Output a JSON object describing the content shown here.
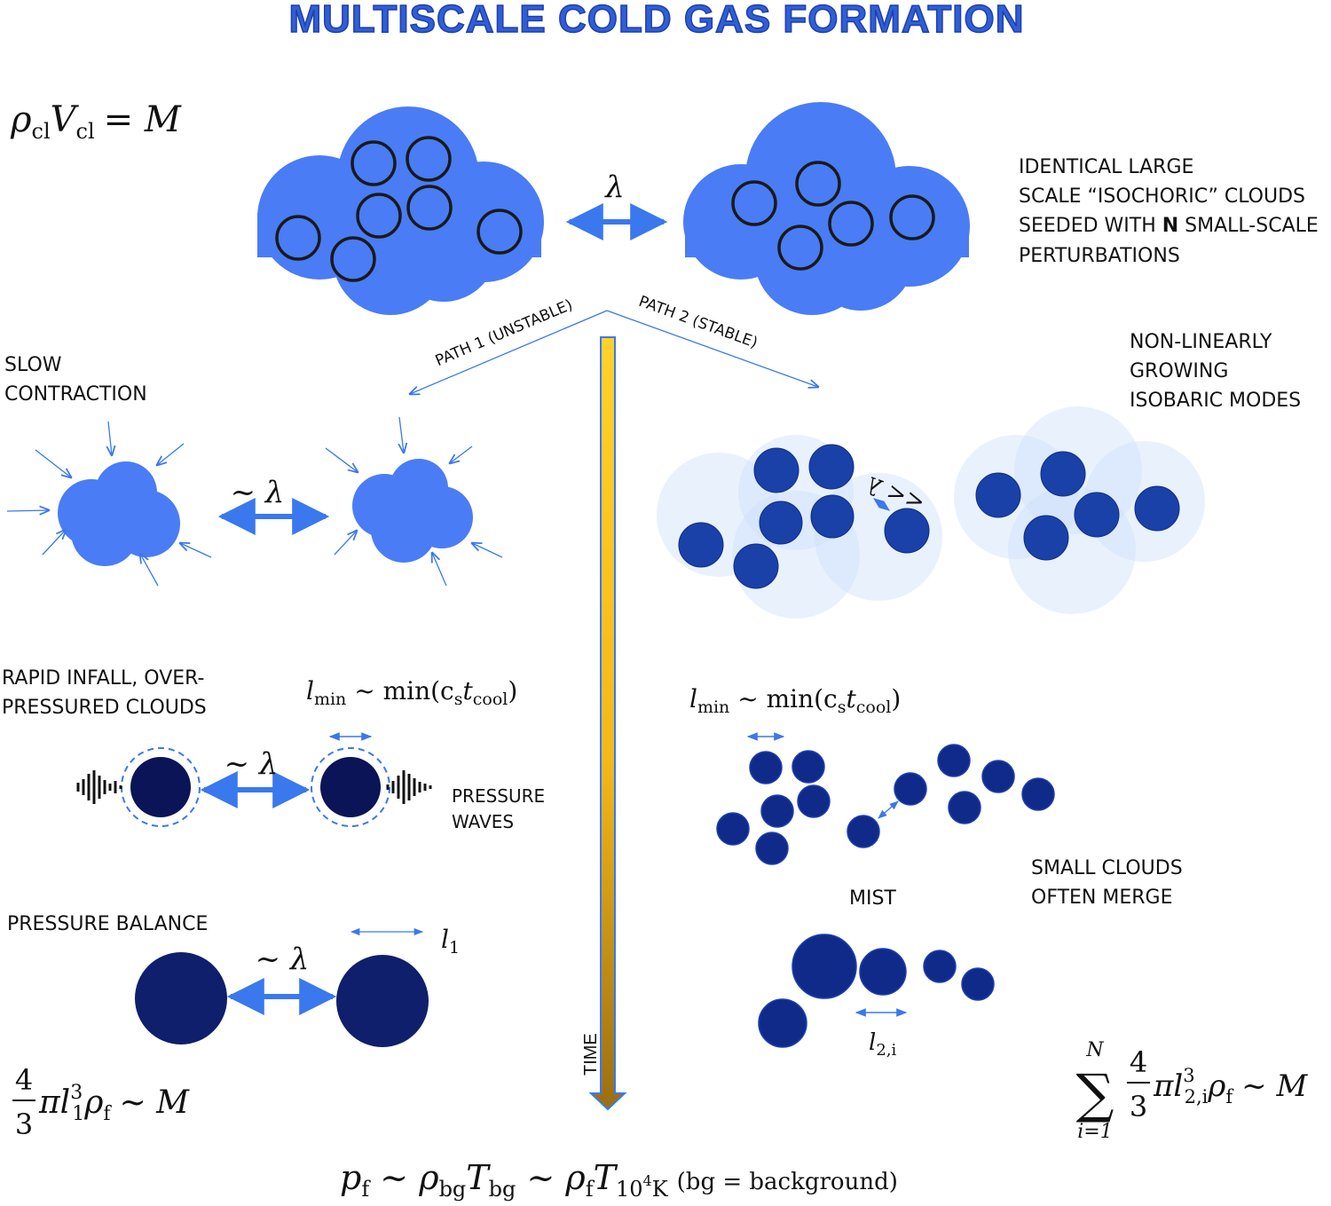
{
  "title": "MULTISCALE COLD GAS FORMATION",
  "colors": {
    "cloud_blue": "#4a7cf5",
    "arrow_blue": "#3a78ee",
    "dark_navy": "#0b1456",
    "deep_blue": "#143a9e",
    "halo": "#cfe0fa",
    "time_top": "#ffd12a",
    "time_bottom": "#a27412"
  },
  "equations": {
    "top_left": {
      "lhs": "ρ",
      "lhs_sub": "cl",
      "mid": "V",
      "mid_sub": "cl",
      "rhs": "= M"
    },
    "top_right_text": {
      "line1": "IDENTICAL LARGE",
      "line2": "SCALE “ISOCHORIC” CLOUDS",
      "line3_pre": "SEEDED WITH ",
      "line3_bold": "N",
      "line3_post": " SMALL-SCALE",
      "line4": "PERTURBATIONS"
    },
    "lambda_top": "λ",
    "path1": "PATH 1 (UNSTABLE)",
    "path2": "PATH 2 (STABLE)",
    "slow_contraction": [
      "SLOW",
      "CONTRACTION"
    ],
    "nonlinear": [
      "NON-LINEARLY",
      "GROWING",
      "ISOBARIC MODES"
    ],
    "tilde_lambda": "~ λ",
    "ll_lambda": "<< λ",
    "rapid_infall": [
      "RAPID INFALL, OVER-",
      "PRESSURED CLOUDS"
    ],
    "lmin_left": {
      "l": "l",
      "sub": "min",
      "rest": " ~ min(c",
      "sub2": "s",
      "t": "t",
      "sub3": "cool",
      "close": ")"
    },
    "lmin_right": {
      "l": "l",
      "sub": "min",
      "rest": " ~ min(c",
      "sub2": "s",
      "t": "t",
      "sub3": "cool",
      "close": ")"
    },
    "pressure_waves": [
      "PRESSURE",
      "WAVES"
    ],
    "pressure_balance": "PRESSURE BALANCE",
    "l1": {
      "l": "l",
      "sub": "1"
    },
    "small_clouds_merge": [
      "SMALL CLOUDS",
      "OFTEN MERGE"
    ],
    "mist": "MIST",
    "l2i": {
      "l": "l",
      "sub": "2,i"
    },
    "time": "TIME",
    "bottom_left": {
      "frac_num": "4",
      "frac_den": "3",
      "pi": "π",
      "l": "l",
      "sub": "1",
      "sup": "3",
      "rho": "ρ",
      "rho_sub": "f",
      "rhs": "~ M"
    },
    "bottom_right": {
      "sum_top": "N",
      "sum_bottom": "i=1",
      "sigma": "∑",
      "frac_num": "4",
      "frac_den": "3",
      "pi": "π",
      "l": "l",
      "sub": "2,i",
      "sup": "3",
      "rho": "ρ",
      "rho_sub": "f",
      "rhs": "~ M"
    },
    "bottom_center": {
      "p": "p",
      "p_sub": "f",
      "t1": " ~ ρ",
      "t1_sub": "bg",
      "T1": "T",
      "T1_sub": "bg",
      "t2": " ~ ρ",
      "t2_sub": "f",
      "T2": "T",
      "T2_sub": "10",
      "T2_sup": "4",
      "T2_K": "K",
      "note": "(bg = background)"
    }
  }
}
